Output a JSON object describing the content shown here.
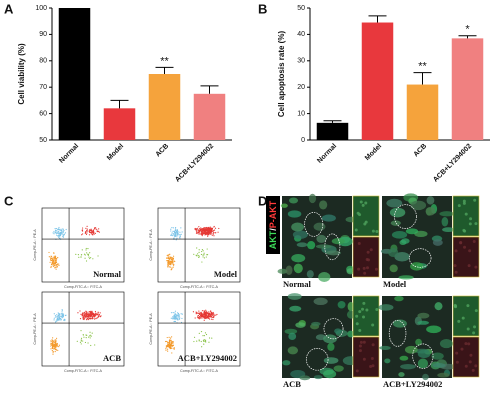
{
  "panel_labels": [
    "A",
    "B",
    "C",
    "D"
  ],
  "chart_data": [
    {
      "type": "bar",
      "ylabel": "Cell viability (%)",
      "categories": [
        "Normal",
        "Model",
        "ACB",
        "ACB+LY294002"
      ],
      "values": [
        100,
        62,
        75,
        67.5
      ],
      "errors": [
        0,
        3,
        2.5,
        3
      ],
      "colors": [
        "#000000",
        "#e8383d",
        "#f5a33c",
        "#f08080"
      ],
      "significance": [
        null,
        null,
        "**",
        null
      ],
      "ylim": [
        50,
        100
      ],
      "yticks": [
        50,
        60,
        70,
        80,
        90,
        100
      ]
    },
    {
      "type": "bar",
      "ylabel": "Cell apoptosis rate (%)",
      "categories": [
        "Normal",
        "Model",
        "ACB",
        "ACB+LY294002"
      ],
      "values": [
        6.5,
        44.5,
        21,
        38.5
      ],
      "errors": [
        0.8,
        2.5,
        4.5,
        1
      ],
      "colors": [
        "#000000",
        "#e8383d",
        "#f5a33c",
        "#f08080"
      ],
      "significance": [
        null,
        null,
        "**",
        "*"
      ],
      "ylim": [
        0,
        50
      ],
      "yticks": [
        0,
        10,
        20,
        30,
        40,
        50
      ]
    }
  ],
  "flow_cytometry": {
    "y_axis": "Comp-PE-A :: PE-A",
    "x_axis": "Comp-FITC-A :: FITC-A",
    "groups": [
      "Normal",
      "Model",
      "ACB",
      "ACB+LY294002"
    ]
  },
  "immunofluorescence": {
    "stain_green": "AKT",
    "separator": "/",
    "stain_red": "P-AKT",
    "groups": [
      "Normal",
      "Model",
      "ACB",
      "ACB+LY294002"
    ]
  }
}
